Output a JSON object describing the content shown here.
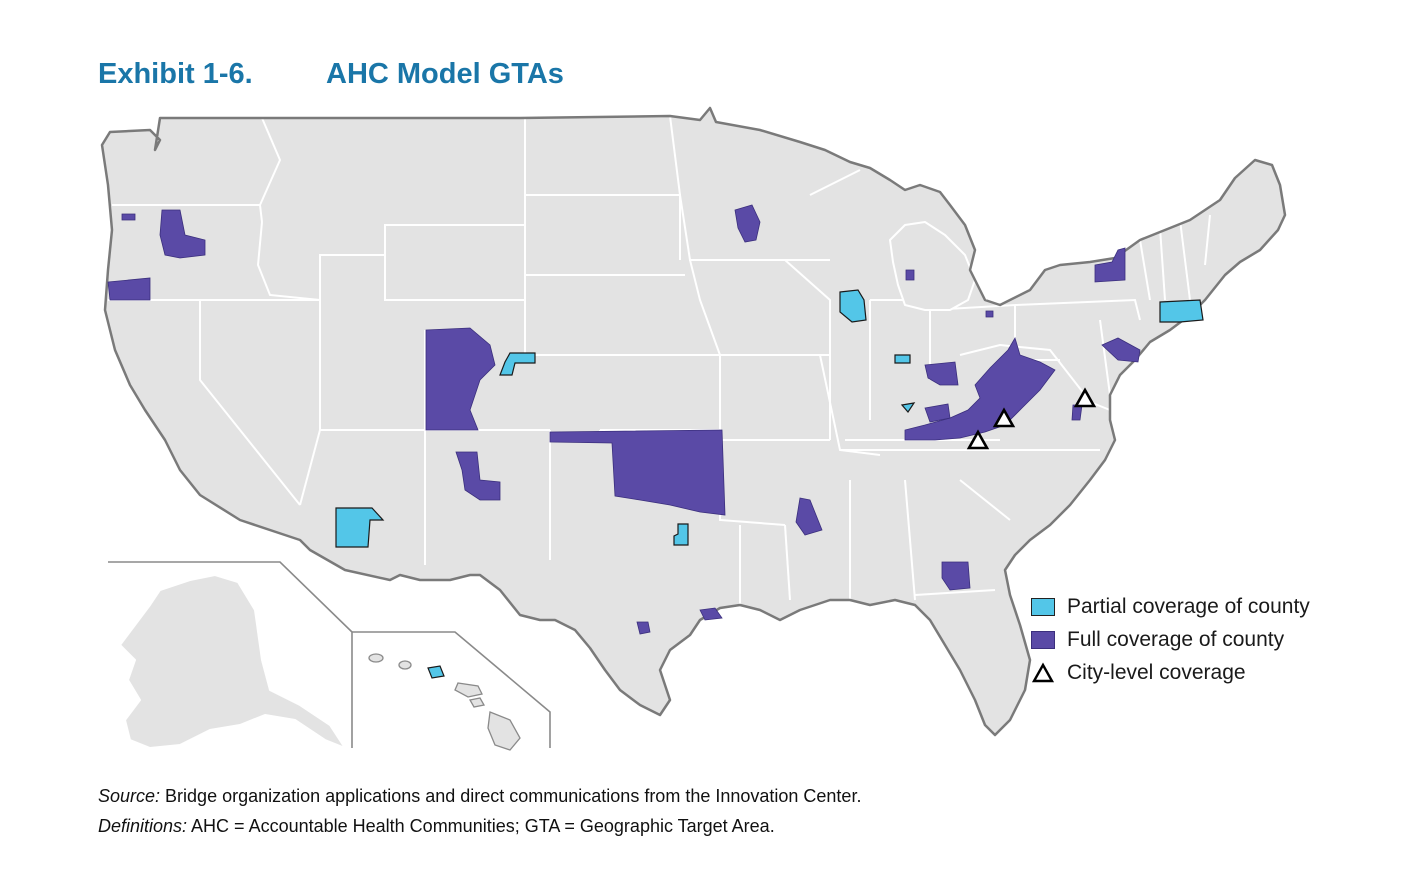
{
  "title": {
    "number": "Exhibit 1-6.",
    "text": "AHC Model GTAs"
  },
  "colors": {
    "title": "#1a76a8",
    "land": "#e3e3e3",
    "partial": "#53c6e8",
    "full": "#5a4aa6",
    "border": "#7a7a7a"
  },
  "legend": {
    "partial": "Partial coverage of county",
    "full": "Full coverage of county",
    "city": "City-level coverage"
  },
  "footnotes": {
    "source_label": "Source:",
    "source_text": " Bridge organization applications and direct communications from the Innovation Center.",
    "definitions_label": "Definitions:",
    "definitions_text": " AHC = Accountable Health Communities; GTA = Geographic Target Area."
  },
  "icons": {
    "city_marker": "triangle-icon"
  }
}
